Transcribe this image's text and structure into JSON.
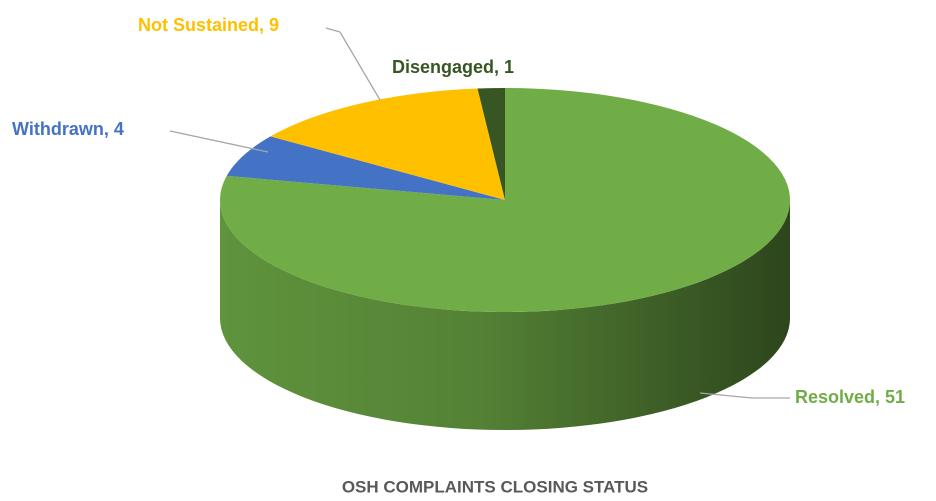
{
  "chart_data": {
    "type": "pie",
    "title": "OSH COMPLAINTS CLOSING STATUS",
    "values": [
      51,
      4,
      9,
      1
    ],
    "value_labels": [
      "Resolved, 51",
      "Withdrawn, 4",
      "Not Sustained, 9",
      "Disengaged, 1"
    ],
    "colors": [
      "#70ad47",
      "#4472c4",
      "#ffc000",
      "#375623"
    ]
  }
}
